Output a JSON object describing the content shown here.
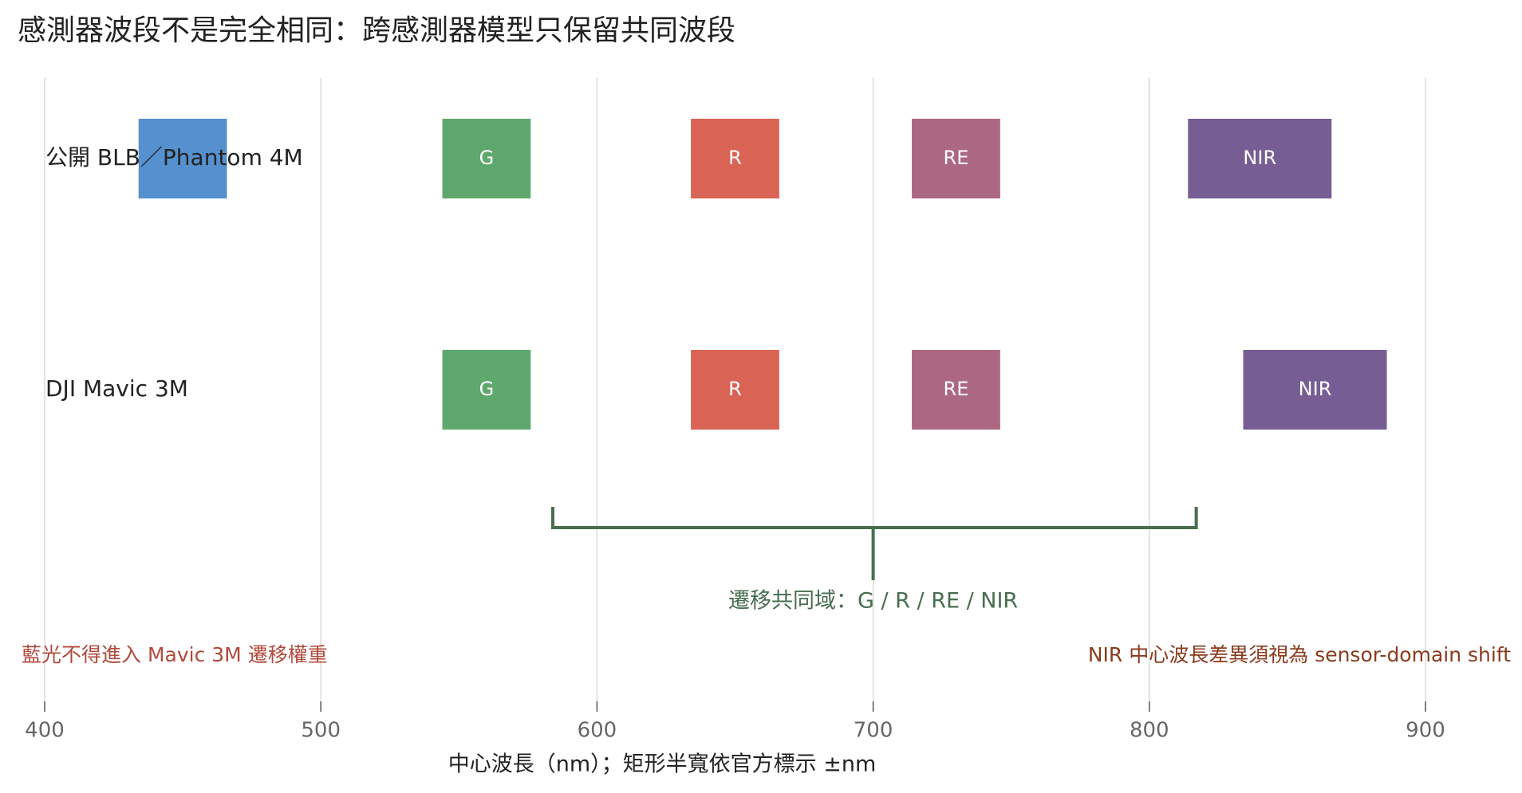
{
  "chart_data": {
    "type": "band",
    "title": "感測器波段不是完全相同：跨感測器模型只保留共同波段",
    "x_label": "中心波長（nm）；矩形半寬依官方標示 ±nm",
    "xlim": [
      400,
      900
    ],
    "xticks": [
      400,
      500,
      600,
      700,
      800,
      900
    ],
    "grid": true,
    "rows": [
      {
        "name": "公開 BLB／Phantom 4M",
        "bands": [
          {
            "label": null,
            "center": 450,
            "half_width": 16,
            "color": "#5591ce"
          },
          {
            "label": "G",
            "center": 560,
            "half_width": 16,
            "color": "#5ea86e"
          },
          {
            "label": "R",
            "center": 650,
            "half_width": 16,
            "color": "#d96455"
          },
          {
            "label": "RE",
            "center": 730,
            "half_width": 16,
            "color": "#ac6883"
          },
          {
            "label": "NIR",
            "center": 840,
            "half_width": 26,
            "color": "#765e95"
          }
        ]
      },
      {
        "name": "DJI Mavic 3M",
        "bands": [
          {
            "label": "G",
            "center": 560,
            "half_width": 16,
            "color": "#5ea86e"
          },
          {
            "label": "R",
            "center": 650,
            "half_width": 16,
            "color": "#d96455"
          },
          {
            "label": "RE",
            "center": 730,
            "half_width": 16,
            "color": "#ac6883"
          },
          {
            "label": "NIR",
            "center": 860,
            "half_width": 26,
            "color": "#765e95"
          }
        ]
      }
    ],
    "bracket": {
      "start": 584,
      "end": 817,
      "mid": 700,
      "label": "遷移共同域：G / R / RE / NIR",
      "color": "#476e4f"
    },
    "annotations": [
      {
        "text": "藍光不得進入 Mavic 3M 遷移權重",
        "color": "#b04a3c"
      },
      {
        "text": "NIR 中心波長差異須視為 sensor-domain shift",
        "color": "#8a3a1c"
      }
    ]
  }
}
